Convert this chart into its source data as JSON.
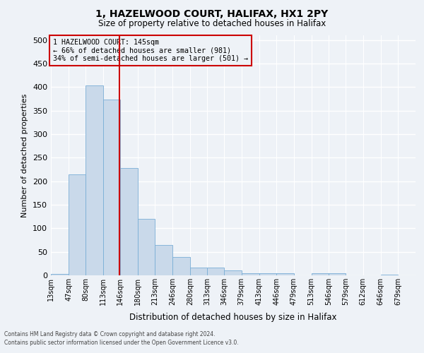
{
  "title1": "1, HAZELWOOD COURT, HALIFAX, HX1 2PY",
  "title2": "Size of property relative to detached houses in Halifax",
  "xlabel": "Distribution of detached houses by size in Halifax",
  "ylabel": "Number of detached properties",
  "annotation_line1": "1 HAZELWOOD COURT: 145sqm",
  "annotation_line2": "← 66% of detached houses are smaller (981)",
  "annotation_line3": "34% of semi-detached houses are larger (501) →",
  "property_size_sqm": 145,
  "bin_edges": [
    13,
    47,
    80,
    113,
    146,
    180,
    213,
    246,
    280,
    313,
    346,
    379,
    413,
    446,
    479,
    513,
    546,
    579,
    612,
    646,
    679
  ],
  "bar_heights": [
    3,
    215,
    403,
    373,
    228,
    120,
    65,
    39,
    17,
    17,
    11,
    5,
    5,
    5,
    0,
    4,
    4,
    0,
    0,
    2
  ],
  "bar_color": "#c9d9ea",
  "bar_edge_color": "#7aaed6",
  "line_color": "#cc0000",
  "annotation_box_color": "#cc0000",
  "background_color": "#eef2f7",
  "grid_color": "#ffffff",
  "footnote1": "Contains HM Land Registry data © Crown copyright and database right 2024.",
  "footnote2": "Contains public sector information licensed under the Open Government Licence v3.0.",
  "ylim": [
    0,
    510
  ],
  "yticks": [
    0,
    50,
    100,
    150,
    200,
    250,
    300,
    350,
    400,
    450,
    500
  ]
}
